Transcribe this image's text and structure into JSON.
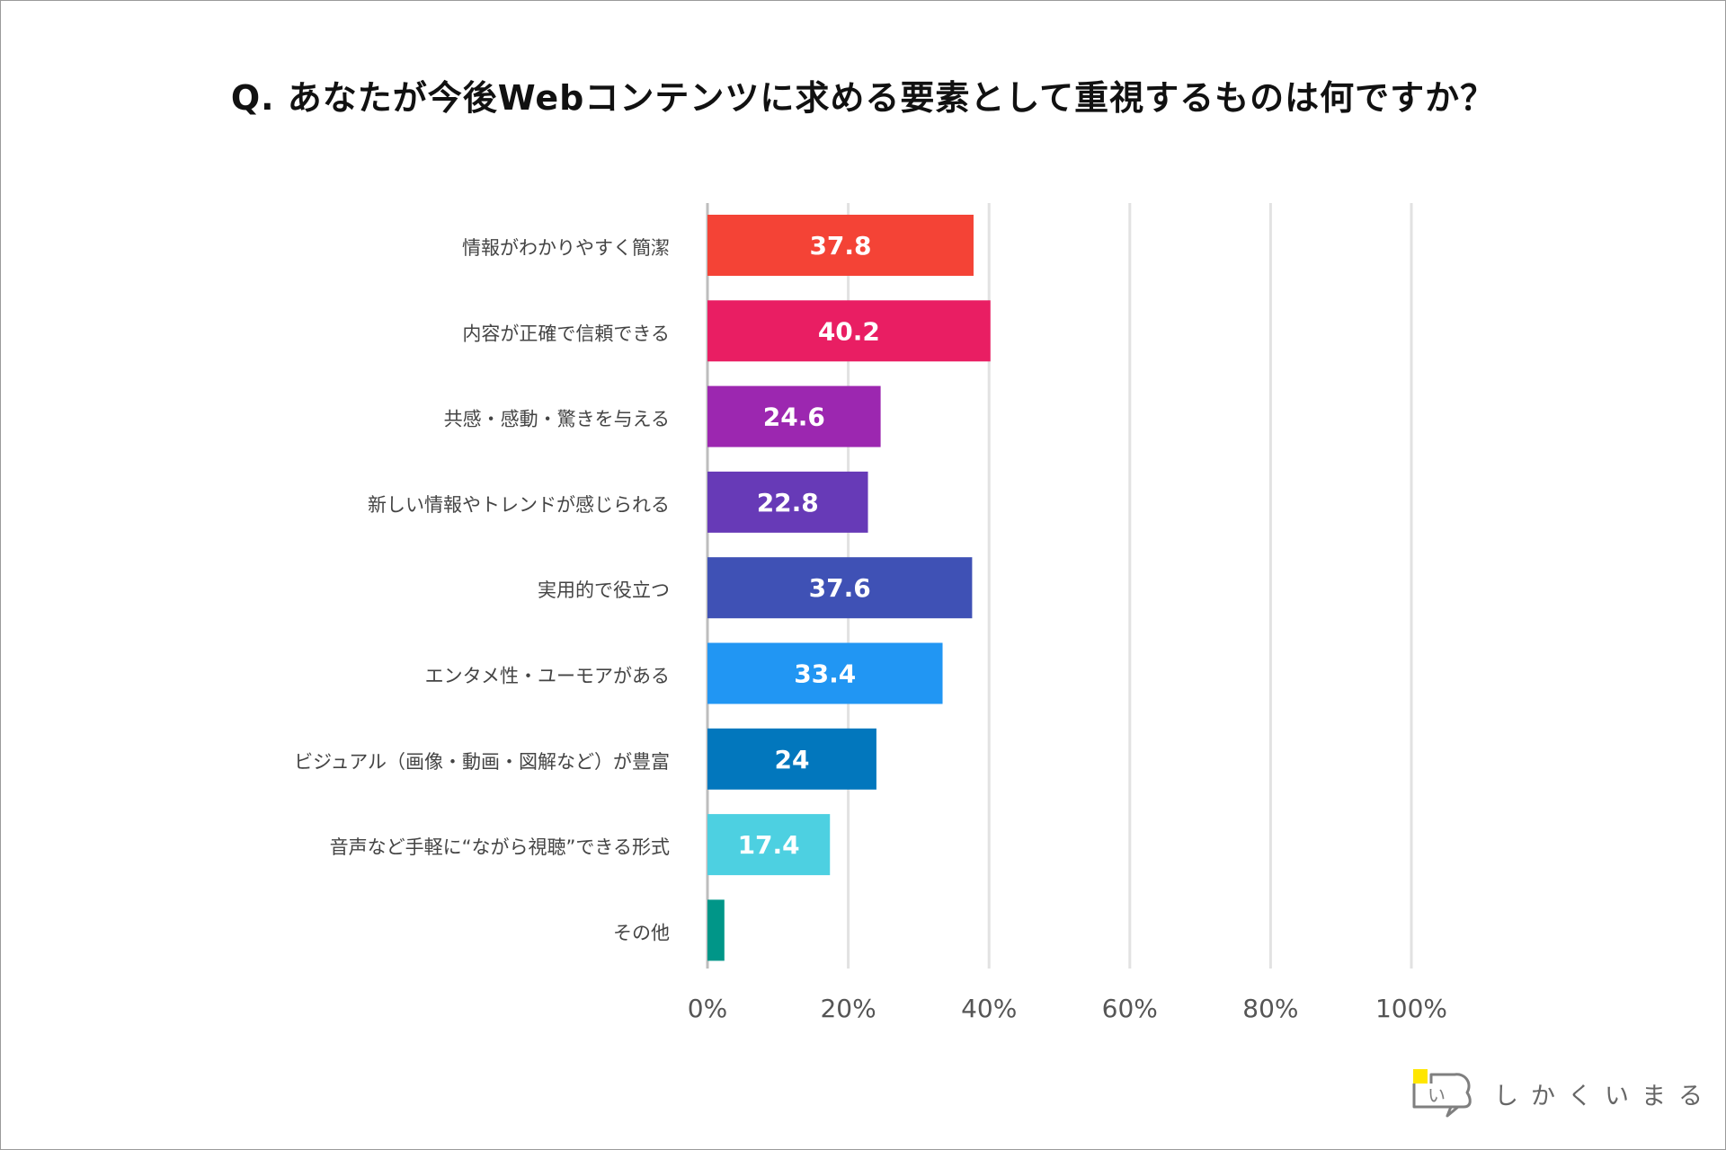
{
  "chart_data": {
    "type": "bar",
    "orientation": "horizontal",
    "title": "Q. あなたが今後Webコンテンツに求める要素として重視するものは何ですか？",
    "categories": [
      "情報がわかりやすく簡潔",
      "内容が正確で信頼できる",
      "共感・感動・驚きを与える",
      "新しい情報やトレンドが感じられる",
      "実用的で役立つ",
      "エンタメ性・ユーモアがある",
      "ビジュアル（画像・動画・図解など）が豊富",
      "音声など手軽に“ながら視聴”できる形式",
      "その他"
    ],
    "values": [
      37.8,
      40.2,
      24.6,
      22.8,
      37.6,
      33.4,
      24,
      17.4,
      2.4
    ],
    "data_labels": [
      "37.8",
      "40.2",
      "24.6",
      "22.8",
      "37.6",
      "33.4",
      "24",
      "17.4",
      ""
    ],
    "colors": [
      "#F44336",
      "#E91E63",
      "#9C27B0",
      "#673AB7",
      "#3F51B5",
      "#2196F3",
      "#0277BD",
      "#4DD0E1",
      "#009688"
    ],
    "xlim": [
      0,
      100
    ],
    "xticks": [
      "0%",
      "20%",
      "40%",
      "60%",
      "80%",
      "100%"
    ],
    "grid": true,
    "xlabel": "",
    "ylabel": ""
  },
  "brand": {
    "logo_text": "しかくいまる",
    "logo_icon": "speech-bubble-icon",
    "logo_icon_text": "い",
    "accent_color": "#FFE600"
  }
}
